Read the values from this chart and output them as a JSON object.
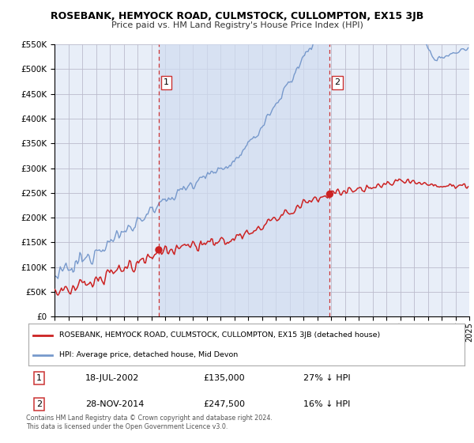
{
  "title": "ROSEBANK, HEMYOCK ROAD, CULMSTOCK, CULLOMPTON, EX15 3JB",
  "subtitle": "Price paid vs. HM Land Registry's House Price Index (HPI)",
  "red_label": "ROSEBANK, HEMYOCK ROAD, CULMSTOCK, CULLOMPTON, EX15 3JB (detached house)",
  "blue_label": "HPI: Average price, detached house, Mid Devon",
  "annotation1_date": "18-JUL-2002",
  "annotation1_price": "£135,000",
  "annotation1_hpi": "27% ↓ HPI",
  "annotation2_date": "28-NOV-2014",
  "annotation2_price": "£247,500",
  "annotation2_hpi": "16% ↓ HPI",
  "footnote1": "Contains HM Land Registry data © Crown copyright and database right 2024.",
  "footnote2": "This data is licensed under the Open Government Licence v3.0.",
  "vline1_year": 2002.54,
  "vline2_year": 2014.91,
  "sale1_year": 2002.54,
  "sale1_value": 135000,
  "sale2_year": 2014.91,
  "sale2_value": 247500,
  "ylim": [
    0,
    550000
  ],
  "xlim_start": 1995,
  "xlim_end": 2025,
  "background_color": "#ffffff",
  "grid_color": "#bbbbcc",
  "hpi_color": "#7799cc",
  "red_color": "#cc2222",
  "vline_color": "#cc3333",
  "plot_bg_color": "#e8eef8",
  "shade_color": "#d0dcf0"
}
